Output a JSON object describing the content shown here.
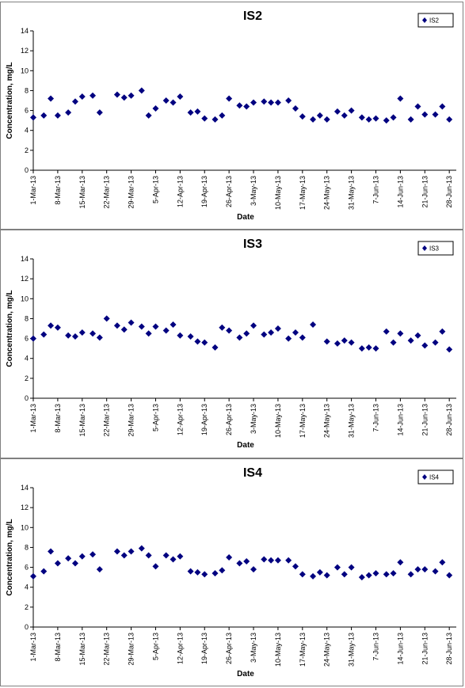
{
  "chart_data": [
    {
      "type": "scatter",
      "title": "IS2",
      "xlabel": "Date",
      "ylabel": "Concentration, mg/L",
      "ylim": [
        0,
        14
      ],
      "yticks": [
        "0",
        "2",
        "4",
        "6",
        "8",
        "10",
        "12",
        "14"
      ],
      "xlim": [
        "2013-03-01",
        "2013-06-30"
      ],
      "xticks": [
        "1-Mar-13",
        "8-Mar-13",
        "15-Mar-13",
        "22-Mar-13",
        "29-Mar-13",
        "5-Apr-13",
        "12-Apr-13",
        "19-Apr-13",
        "26-Apr-13",
        "3-May-13",
        "10-May-13",
        "17-May-13",
        "24-May-13",
        "31-May-13",
        "7-Jun-13",
        "14-Jun-13",
        "21-Jun-13",
        "28-Jun-13"
      ],
      "grid": false,
      "legend": "top-right",
      "color": "#000080",
      "series": [
        {
          "name": "IS2",
          "x": [
            "2013-03-01",
            "2013-03-04",
            "2013-03-06",
            "2013-03-08",
            "2013-03-11",
            "2013-03-13",
            "2013-03-15",
            "2013-03-18",
            "2013-03-20",
            "2013-03-25",
            "2013-03-27",
            "2013-03-29",
            "2013-04-01",
            "2013-04-03",
            "2013-04-05",
            "2013-04-08",
            "2013-04-10",
            "2013-04-12",
            "2013-04-15",
            "2013-04-17",
            "2013-04-19",
            "2013-04-22",
            "2013-04-24",
            "2013-04-26",
            "2013-04-29",
            "2013-05-01",
            "2013-05-03",
            "2013-05-06",
            "2013-05-08",
            "2013-05-10",
            "2013-05-13",
            "2013-05-15",
            "2013-05-17",
            "2013-05-20",
            "2013-05-22",
            "2013-05-24",
            "2013-05-27",
            "2013-05-29",
            "2013-05-31",
            "2013-06-03",
            "2013-06-05",
            "2013-06-07",
            "2013-06-10",
            "2013-06-12",
            "2013-06-14",
            "2013-06-17",
            "2013-06-19",
            "2013-06-21",
            "2013-06-24",
            "2013-06-26",
            "2013-06-28"
          ],
          "y": [
            5.3,
            5.5,
            7.2,
            5.5,
            5.8,
            6.9,
            7.4,
            7.5,
            5.8,
            7.6,
            7.3,
            7.5,
            8.0,
            5.5,
            6.2,
            7.0,
            6.8,
            7.4,
            5.8,
            5.9,
            5.2,
            5.1,
            5.5,
            7.2,
            6.5,
            6.4,
            6.8,
            6.9,
            6.8,
            6.8,
            7.0,
            6.2,
            5.4,
            5.1,
            5.5,
            5.1,
            5.9,
            5.5,
            6.0,
            5.3,
            5.1,
            5.2,
            5.0,
            5.3,
            7.2,
            5.1,
            6.4,
            5.6,
            5.6,
            6.4,
            5.1
          ]
        }
      ]
    },
    {
      "type": "scatter",
      "title": "IS3",
      "xlabel": "Date",
      "ylabel": "Concentration, mg/L",
      "ylim": [
        0,
        14
      ],
      "yticks": [
        "0",
        "2",
        "4",
        "6",
        "8",
        "10",
        "12",
        "14"
      ],
      "xlim": [
        "2013-03-01",
        "2013-06-30"
      ],
      "xticks": [
        "1-Mar-13",
        "8-Mar-13",
        "15-Mar-13",
        "22-Mar-13",
        "29-Mar-13",
        "5-Apr-13",
        "12-Apr-13",
        "19-Apr-13",
        "26-Apr-13",
        "3-May-13",
        "10-May-13",
        "17-May-13",
        "24-May-13",
        "31-May-13",
        "7-Jun-13",
        "14-Jun-13",
        "21-Jun-13",
        "28-Jun-13"
      ],
      "grid": false,
      "legend": "top-right",
      "color": "#000080",
      "series": [
        {
          "name": "IS3",
          "x": [
            "2013-03-01",
            "2013-03-04",
            "2013-03-06",
            "2013-03-08",
            "2013-03-11",
            "2013-03-13",
            "2013-03-15",
            "2013-03-18",
            "2013-03-20",
            "2013-03-22",
            "2013-03-25",
            "2013-03-27",
            "2013-03-29",
            "2013-04-01",
            "2013-04-03",
            "2013-04-05",
            "2013-04-08",
            "2013-04-10",
            "2013-04-12",
            "2013-04-15",
            "2013-04-17",
            "2013-04-19",
            "2013-04-22",
            "2013-04-24",
            "2013-04-26",
            "2013-04-29",
            "2013-05-01",
            "2013-05-03",
            "2013-05-06",
            "2013-05-08",
            "2013-05-10",
            "2013-05-13",
            "2013-05-15",
            "2013-05-17",
            "2013-05-20",
            "2013-05-24",
            "2013-05-27",
            "2013-05-29",
            "2013-05-31",
            "2013-06-03",
            "2013-06-05",
            "2013-06-07",
            "2013-06-10",
            "2013-06-12",
            "2013-06-14",
            "2013-06-17",
            "2013-06-19",
            "2013-06-21",
            "2013-06-24",
            "2013-06-26",
            "2013-06-28"
          ],
          "y": [
            6.0,
            6.4,
            7.3,
            7.1,
            6.3,
            6.2,
            6.6,
            6.5,
            6.1,
            8.0,
            7.3,
            6.9,
            7.6,
            7.2,
            6.5,
            7.2,
            6.8,
            7.4,
            6.3,
            6.2,
            5.7,
            5.6,
            5.1,
            7.1,
            6.8,
            6.1,
            6.5,
            7.3,
            6.4,
            6.6,
            7.0,
            6.0,
            6.6,
            6.1,
            7.4,
            5.7,
            5.5,
            5.8,
            5.6,
            5.0,
            5.1,
            5.0,
            6.7,
            5.6,
            6.5,
            5.8,
            6.3,
            5.3,
            5.6,
            6.7,
            4.9
          ]
        }
      ]
    },
    {
      "type": "scatter",
      "title": "IS4",
      "xlabel": "Date",
      "ylabel": "Concentration, mg/L",
      "ylim": [
        0,
        14
      ],
      "yticks": [
        "0",
        "2",
        "4",
        "6",
        "8",
        "10",
        "12",
        "14"
      ],
      "xlim": [
        "2013-03-01",
        "2013-06-30"
      ],
      "xticks": [
        "1-Mar-13",
        "8-Mar-13",
        "15-Mar-13",
        "22-Mar-13",
        "29-Mar-13",
        "5-Apr-13",
        "12-Apr-13",
        "19-Apr-13",
        "26-Apr-13",
        "3-May-13",
        "10-May-13",
        "17-May-13",
        "24-May-13",
        "31-May-13",
        "7-Jun-13",
        "14-Jun-13",
        "21-Jun-13",
        "28-Jun-13"
      ],
      "grid": false,
      "legend": "top-right",
      "color": "#000080",
      "series": [
        {
          "name": "IS4",
          "x": [
            "2013-03-01",
            "2013-03-04",
            "2013-03-06",
            "2013-03-08",
            "2013-03-11",
            "2013-03-13",
            "2013-03-15",
            "2013-03-18",
            "2013-03-20",
            "2013-03-25",
            "2013-03-27",
            "2013-03-29",
            "2013-04-01",
            "2013-04-03",
            "2013-04-05",
            "2013-04-08",
            "2013-04-10",
            "2013-04-12",
            "2013-04-15",
            "2013-04-17",
            "2013-04-19",
            "2013-04-22",
            "2013-04-24",
            "2013-04-26",
            "2013-04-29",
            "2013-05-01",
            "2013-05-03",
            "2013-05-06",
            "2013-05-08",
            "2013-05-10",
            "2013-05-13",
            "2013-05-15",
            "2013-05-17",
            "2013-05-20",
            "2013-05-22",
            "2013-05-24",
            "2013-05-27",
            "2013-05-29",
            "2013-05-31",
            "2013-06-03",
            "2013-06-05",
            "2013-06-07",
            "2013-06-10",
            "2013-06-12",
            "2013-06-14",
            "2013-06-17",
            "2013-06-19",
            "2013-06-21",
            "2013-06-24",
            "2013-06-26",
            "2013-06-28"
          ],
          "y": [
            5.1,
            5.6,
            7.6,
            6.4,
            6.9,
            6.4,
            7.1,
            7.3,
            5.8,
            7.6,
            7.2,
            7.6,
            7.9,
            7.2,
            6.1,
            7.2,
            6.8,
            7.1,
            5.6,
            5.5,
            5.3,
            5.4,
            5.7,
            7.0,
            6.4,
            6.6,
            5.8,
            6.8,
            6.7,
            6.7,
            6.7,
            6.1,
            5.3,
            5.1,
            5.5,
            5.2,
            6.0,
            5.3,
            6.0,
            5.0,
            5.2,
            5.4,
            5.3,
            5.4,
            6.5,
            5.3,
            5.8,
            5.8,
            5.6,
            6.5,
            5.2
          ]
        }
      ]
    }
  ]
}
